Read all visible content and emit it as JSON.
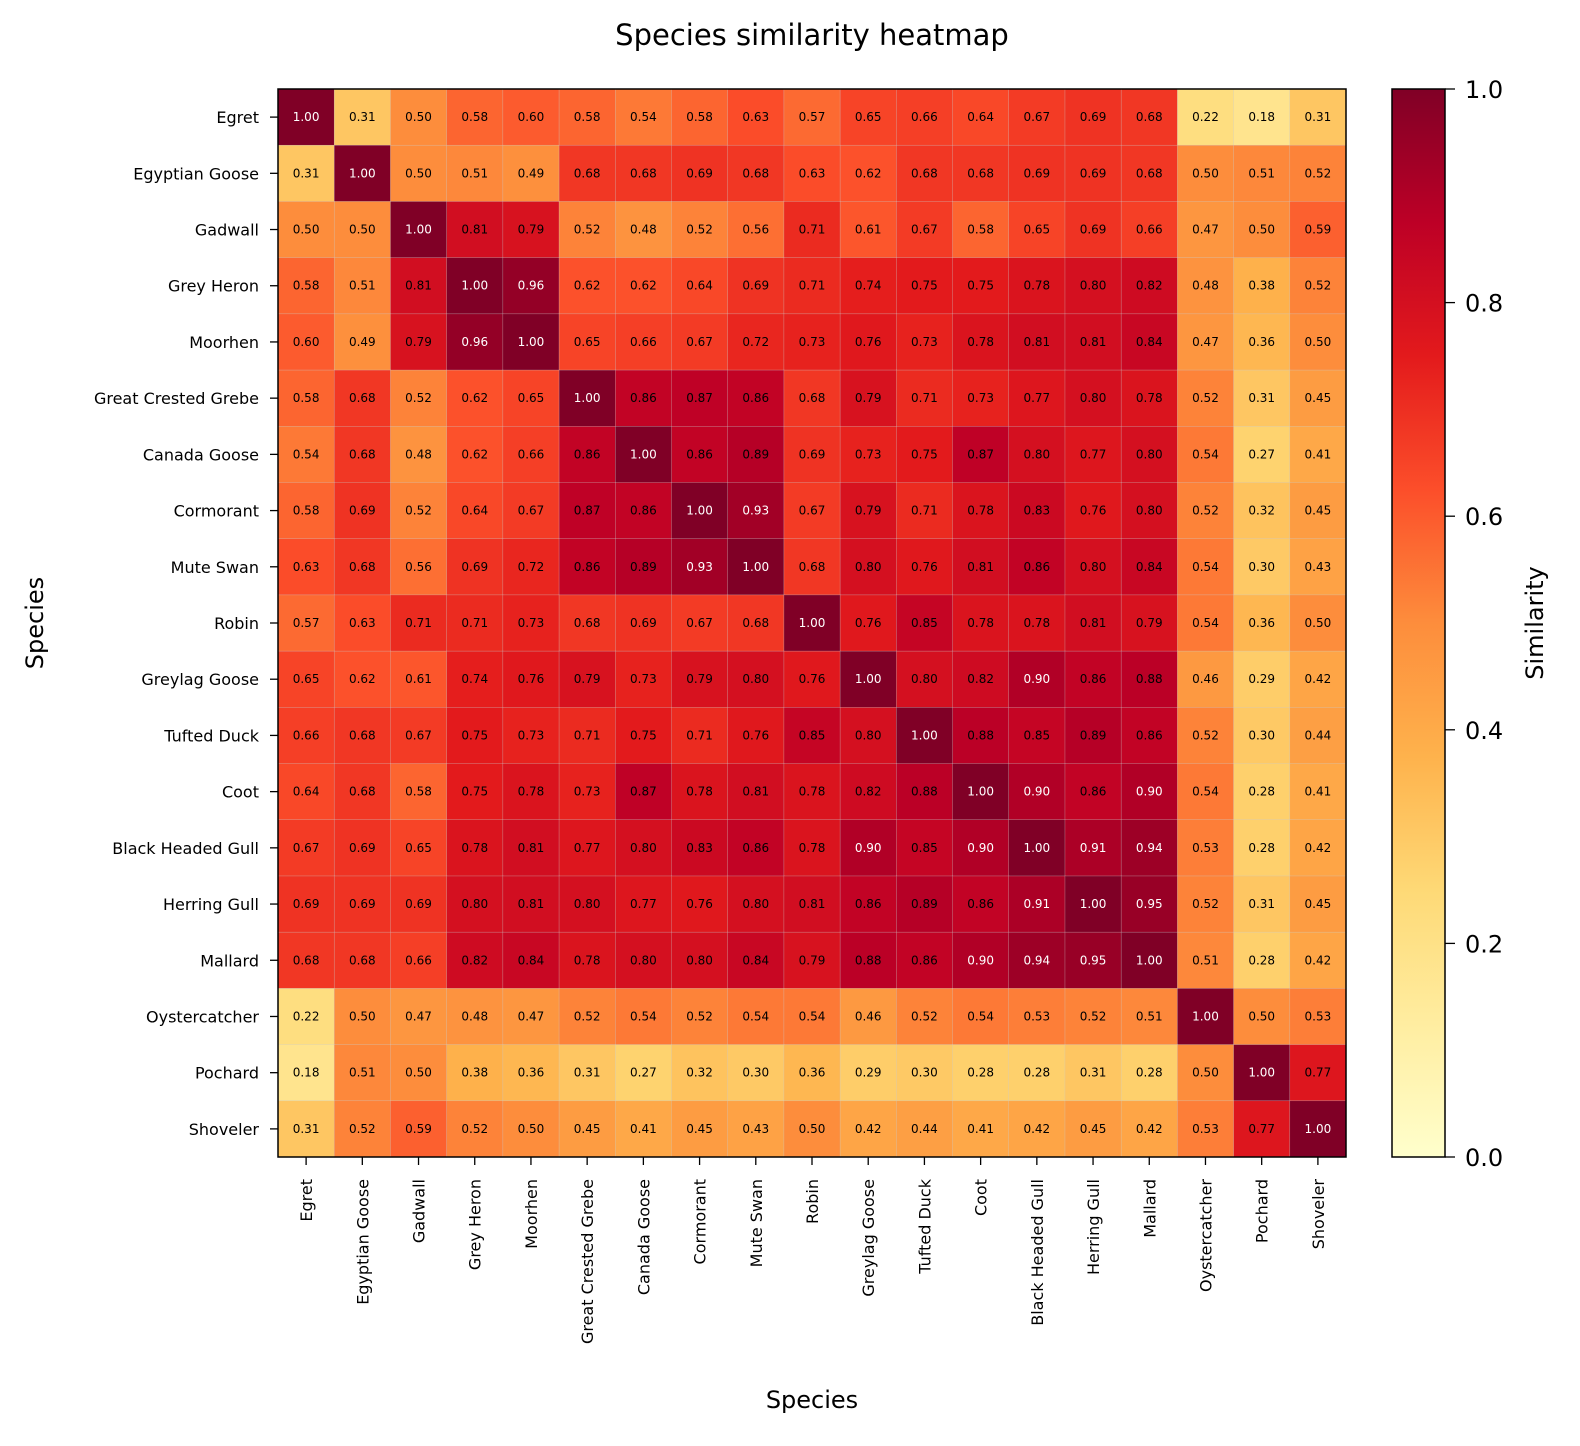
{
  "chart_data": {
    "type": "heatmap",
    "title": "Species similarity heatmap",
    "xlabel": "Species",
    "ylabel": "Species",
    "colorbar_label": "Similarity",
    "colorbar_range": [
      0.0,
      1.0
    ],
    "colorbar_ticks": [
      "0.0",
      "0.2",
      "0.4",
      "0.6",
      "0.8",
      "1.0"
    ],
    "colormap": "YlOrRd",
    "grid": false,
    "categories": [
      "Egret",
      "Egyptian Goose",
      "Gadwall",
      "Grey Heron",
      "Moorhen",
      "Great Crested Grebe",
      "Canada Goose",
      "Cormorant",
      "Mute Swan",
      "Robin",
      "Greylag Goose",
      "Tufted Duck",
      "Coot",
      "Black Headed Gull",
      "Herring Gull",
      "Mallard",
      "Oystercatcher",
      "Pochard",
      "Shoveler"
    ],
    "matrix": [
      [
        "1.00",
        "0.31",
        "0.50",
        "0.58",
        "0.60",
        "0.58",
        "0.54",
        "0.58",
        "0.63",
        "0.57",
        "0.65",
        "0.66",
        "0.64",
        "0.67",
        "0.69",
        "0.68",
        "0.22",
        "0.18",
        "0.31"
      ],
      [
        "0.31",
        "1.00",
        "0.50",
        "0.51",
        "0.49",
        "0.68",
        "0.68",
        "0.69",
        "0.68",
        "0.63",
        "0.62",
        "0.68",
        "0.68",
        "0.69",
        "0.69",
        "0.68",
        "0.50",
        "0.51",
        "0.52"
      ],
      [
        "0.50",
        "0.50",
        "1.00",
        "0.81",
        "0.79",
        "0.52",
        "0.48",
        "0.52",
        "0.56",
        "0.71",
        "0.61",
        "0.67",
        "0.58",
        "0.65",
        "0.69",
        "0.66",
        "0.47",
        "0.50",
        "0.59"
      ],
      [
        "0.58",
        "0.51",
        "0.81",
        "1.00",
        "0.96",
        "0.62",
        "0.62",
        "0.64",
        "0.69",
        "0.71",
        "0.74",
        "0.75",
        "0.75",
        "0.78",
        "0.80",
        "0.82",
        "0.48",
        "0.38",
        "0.52"
      ],
      [
        "0.60",
        "0.49",
        "0.79",
        "0.96",
        "1.00",
        "0.65",
        "0.66",
        "0.67",
        "0.72",
        "0.73",
        "0.76",
        "0.73",
        "0.78",
        "0.81",
        "0.81",
        "0.84",
        "0.47",
        "0.36",
        "0.50"
      ],
      [
        "0.58",
        "0.68",
        "0.52",
        "0.62",
        "0.65",
        "1.00",
        "0.86",
        "0.87",
        "0.86",
        "0.68",
        "0.79",
        "0.71",
        "0.73",
        "0.77",
        "0.80",
        "0.78",
        "0.52",
        "0.31",
        "0.45"
      ],
      [
        "0.54",
        "0.68",
        "0.48",
        "0.62",
        "0.66",
        "0.86",
        "1.00",
        "0.86",
        "0.89",
        "0.69",
        "0.73",
        "0.75",
        "0.87",
        "0.80",
        "0.77",
        "0.80",
        "0.54",
        "0.27",
        "0.41"
      ],
      [
        "0.58",
        "0.69",
        "0.52",
        "0.64",
        "0.67",
        "0.87",
        "0.86",
        "1.00",
        "0.93",
        "0.67",
        "0.79",
        "0.71",
        "0.78",
        "0.83",
        "0.76",
        "0.80",
        "0.52",
        "0.32",
        "0.45"
      ],
      [
        "0.63",
        "0.68",
        "0.56",
        "0.69",
        "0.72",
        "0.86",
        "0.89",
        "0.93",
        "1.00",
        "0.68",
        "0.80",
        "0.76",
        "0.81",
        "0.86",
        "0.80",
        "0.84",
        "0.54",
        "0.30",
        "0.43"
      ],
      [
        "0.57",
        "0.63",
        "0.71",
        "0.71",
        "0.73",
        "0.68",
        "0.69",
        "0.67",
        "0.68",
        "1.00",
        "0.76",
        "0.85",
        "0.78",
        "0.78",
        "0.81",
        "0.79",
        "0.54",
        "0.36",
        "0.50"
      ],
      [
        "0.65",
        "0.62",
        "0.61",
        "0.74",
        "0.76",
        "0.79",
        "0.73",
        "0.79",
        "0.80",
        "0.76",
        "1.00",
        "0.80",
        "0.82",
        "0.90",
        "0.86",
        "0.88",
        "0.46",
        "0.29",
        "0.42"
      ],
      [
        "0.66",
        "0.68",
        "0.67",
        "0.75",
        "0.73",
        "0.71",
        "0.75",
        "0.71",
        "0.76",
        "0.85",
        "0.80",
        "1.00",
        "0.88",
        "0.85",
        "0.89",
        "0.86",
        "0.52",
        "0.30",
        "0.44"
      ],
      [
        "0.64",
        "0.68",
        "0.58",
        "0.75",
        "0.78",
        "0.73",
        "0.87",
        "0.78",
        "0.81",
        "0.78",
        "0.82",
        "0.88",
        "1.00",
        "0.90",
        "0.86",
        "0.90",
        "0.54",
        "0.28",
        "0.41"
      ],
      [
        "0.67",
        "0.69",
        "0.65",
        "0.78",
        "0.81",
        "0.77",
        "0.80",
        "0.83",
        "0.86",
        "0.78",
        "0.90",
        "0.85",
        "0.90",
        "1.00",
        "0.91",
        "0.94",
        "0.53",
        "0.28",
        "0.42"
      ],
      [
        "0.69",
        "0.69",
        "0.69",
        "0.80",
        "0.81",
        "0.80",
        "0.77",
        "0.76",
        "0.80",
        "0.81",
        "0.86",
        "0.89",
        "0.86",
        "0.91",
        "1.00",
        "0.95",
        "0.52",
        "0.31",
        "0.45"
      ],
      [
        "0.68",
        "0.68",
        "0.66",
        "0.82",
        "0.84",
        "0.78",
        "0.80",
        "0.80",
        "0.84",
        "0.79",
        "0.88",
        "0.86",
        "0.90",
        "0.94",
        "0.95",
        "1.00",
        "0.51",
        "0.28",
        "0.42"
      ],
      [
        "0.22",
        "0.50",
        "0.47",
        "0.48",
        "0.47",
        "0.52",
        "0.54",
        "0.52",
        "0.54",
        "0.54",
        "0.46",
        "0.52",
        "0.54",
        "0.53",
        "0.52",
        "0.51",
        "1.00",
        "0.50",
        "0.53"
      ],
      [
        "0.18",
        "0.51",
        "0.50",
        "0.38",
        "0.36",
        "0.31",
        "0.27",
        "0.32",
        "0.30",
        "0.36",
        "0.29",
        "0.30",
        "0.28",
        "0.28",
        "0.31",
        "0.28",
        "0.50",
        "1.00",
        "0.77"
      ],
      [
        "0.31",
        "0.52",
        "0.59",
        "0.52",
        "0.50",
        "0.45",
        "0.41",
        "0.45",
        "0.43",
        "0.50",
        "0.42",
        "0.44",
        "0.41",
        "0.42",
        "0.45",
        "0.42",
        "0.53",
        "0.77",
        "1.00"
      ]
    ]
  }
}
